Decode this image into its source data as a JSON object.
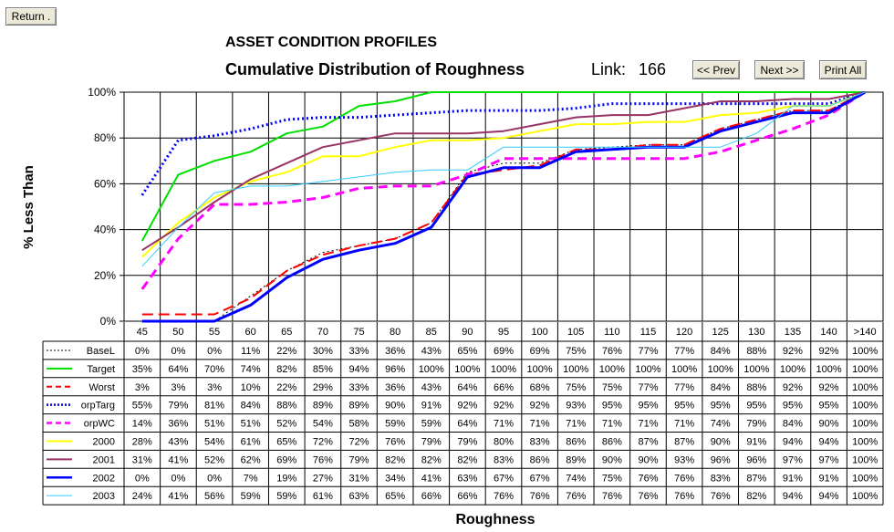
{
  "buttons": {
    "return": "Return .",
    "prev": "<< Prev",
    "next": "Next >>",
    "print": "Print All"
  },
  "header": {
    "title": "ASSET CONDITION PROFILES",
    "subtitle": "Cumulative Distribution of Roughness",
    "link_label": "Link:",
    "link_value": "166"
  },
  "chart_data": {
    "type": "line",
    "title": "Cumulative Distribution of Roughness",
    "xlabel": "Roughness",
    "ylabel": "% Less Than",
    "categories": [
      "45",
      "50",
      "55",
      "60",
      "65",
      "70",
      "75",
      "80",
      "85",
      "90",
      "95",
      "100",
      "105",
      "110",
      "115",
      "120",
      "125",
      "130",
      "135",
      "140",
      ">140"
    ],
    "ylim": [
      0,
      100
    ],
    "yticks": [
      "0%",
      "20%",
      "40%",
      "60%",
      "80%",
      "100%"
    ],
    "grid": true,
    "series": [
      {
        "name": "BaseL",
        "color": "#000000",
        "style": "dotted",
        "width": 1,
        "values": [
          0,
          0,
          0,
          11,
          22,
          30,
          33,
          36,
          43,
          65,
          69,
          69,
          75,
          76,
          77,
          77,
          84,
          88,
          92,
          92,
          100
        ]
      },
      {
        "name": "Target",
        "color": "#00e000",
        "style": "solid",
        "width": 2,
        "values": [
          35,
          64,
          70,
          74,
          82,
          85,
          94,
          96,
          100,
          100,
          100,
          100,
          100,
          100,
          100,
          100,
          100,
          100,
          100,
          100,
          100
        ]
      },
      {
        "name": "Worst",
        "color": "#ff0000",
        "style": "longdash",
        "width": 2,
        "values": [
          3,
          3,
          3,
          10,
          22,
          29,
          33,
          36,
          43,
          64,
          66,
          68,
          75,
          75,
          77,
          77,
          84,
          88,
          92,
          92,
          100
        ]
      },
      {
        "name": "orpTarg",
        "color": "#0000ff",
        "style": "dotted",
        "width": 3,
        "values": [
          55,
          79,
          81,
          84,
          88,
          89,
          89,
          90,
          91,
          92,
          92,
          92,
          93,
          95,
          95,
          95,
          95,
          95,
          95,
          95,
          100
        ]
      },
      {
        "name": "orpWC",
        "color": "#ff00ff",
        "style": "dashed",
        "width": 3,
        "values": [
          14,
          36,
          51,
          51,
          52,
          54,
          58,
          59,
          59,
          64,
          71,
          71,
          71,
          71,
          71,
          71,
          74,
          79,
          84,
          90,
          100
        ]
      },
      {
        "name": "2000",
        "color": "#ffff00",
        "style": "solid",
        "width": 2,
        "values": [
          28,
          43,
          54,
          61,
          65,
          72,
          72,
          76,
          79,
          79,
          80,
          83,
          86,
          86,
          87,
          87,
          90,
          91,
          94,
          94,
          100
        ]
      },
      {
        "name": "2001",
        "color": "#993366",
        "style": "solid",
        "width": 2,
        "values": [
          31,
          41,
          52,
          62,
          69,
          76,
          79,
          82,
          82,
          82,
          83,
          86,
          89,
          90,
          90,
          93,
          96,
          96,
          97,
          97,
          100
        ]
      },
      {
        "name": "2002",
        "color": "#0000ff",
        "style": "solid",
        "width": 3,
        "values": [
          0,
          0,
          0,
          7,
          19,
          27,
          31,
          34,
          41,
          63,
          67,
          67,
          74,
          75,
          76,
          76,
          83,
          87,
          91,
          91,
          100
        ]
      },
      {
        "name": "2003",
        "color": "#33ccff",
        "style": "solid",
        "width": 1,
        "values": [
          24,
          41,
          56,
          59,
          59,
          61,
          63,
          65,
          66,
          66,
          76,
          76,
          76,
          76,
          76,
          76,
          76,
          82,
          94,
          94,
          100
        ]
      }
    ]
  }
}
